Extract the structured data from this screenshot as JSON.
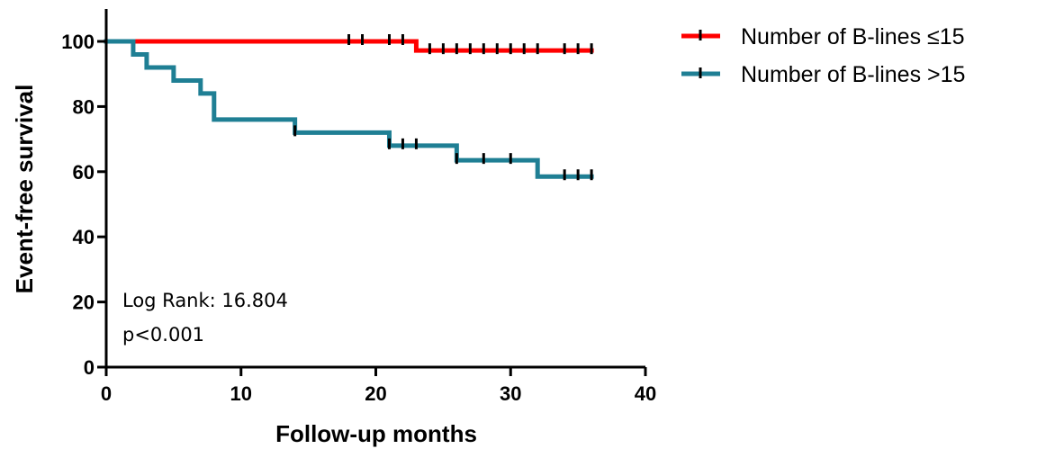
{
  "chart_data": {
    "type": "line",
    "subtype": "kaplan-meier step",
    "title": "",
    "xlabel": "Follow-up months",
    "ylabel": "Event-free survival",
    "xlim": [
      0,
      40
    ],
    "ylim": [
      0,
      100
    ],
    "xticks": [
      0,
      10,
      20,
      30,
      40
    ],
    "yticks": [
      0,
      20,
      40,
      60,
      80,
      100
    ],
    "grid": false,
    "legend_position": "top-right",
    "annotations": [
      "Log Rank: 16.804",
      "p<0.001"
    ],
    "series": [
      {
        "name": "Number of B-lines ≤15",
        "color": "#ff0000",
        "steps": [
          [
            0,
            100
          ],
          [
            23,
            97.2
          ],
          [
            36,
            97.2
          ]
        ],
        "censored": [
          18,
          19,
          21,
          22,
          24,
          25,
          26,
          27,
          28,
          29,
          30,
          31,
          32,
          34,
          35,
          36
        ],
        "censored_y": [
          100,
          100,
          100,
          100,
          97.2,
          97.2,
          97.2,
          97.2,
          97.2,
          97.2,
          97.2,
          97.2,
          97.2,
          97.2,
          97.2,
          97.2
        ]
      },
      {
        "name": "Number of B-lines >15",
        "color": "#1f7f94",
        "steps": [
          [
            0,
            100
          ],
          [
            2,
            96
          ],
          [
            3,
            92
          ],
          [
            5,
            88
          ],
          [
            7,
            84
          ],
          [
            8,
            76
          ],
          [
            14,
            72
          ],
          [
            21,
            68
          ],
          [
            26,
            63.5
          ],
          [
            32,
            58.5
          ],
          [
            36,
            58.5
          ]
        ],
        "censored": [
          14,
          21,
          22,
          23,
          26,
          28,
          30,
          34,
          35,
          36
        ],
        "censored_y": [
          72,
          68,
          68,
          68,
          63.5,
          63.5,
          63.5,
          58.5,
          58.5,
          58.5
        ]
      }
    ]
  }
}
